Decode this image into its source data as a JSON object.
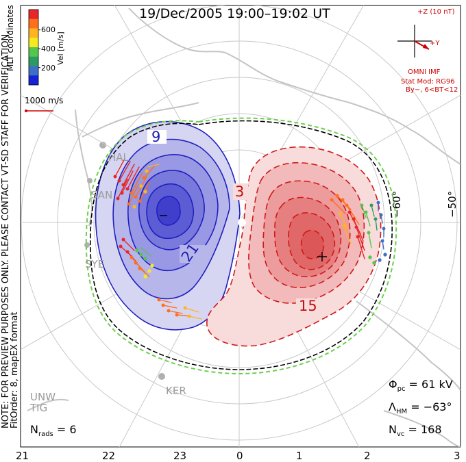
{
  "title": "19/Dec/2005 19:00–19:02 UT",
  "legend": {
    "colorbar_label": "Vel [m/s]",
    "ticks": [
      "600",
      "400",
      "200"
    ],
    "colors": [
      "#e8262a",
      "#ff6f1a",
      "#ffb422",
      "#f6e91f",
      "#55c64d",
      "#2a9b62",
      "#3d6fc8",
      "#1423d6"
    ],
    "scale_label": "1000 m/s",
    "coord_label": "MLT coordinates"
  },
  "imf": {
    "z_label": "+Z (10 nT)",
    "y_label": "+Y",
    "source": "OMNI IMF",
    "model_line1": "Stat Mod: RG96",
    "model_line2": "By−, 6<BT<12"
  },
  "note_line1": "NOTE: FOR PREVIEW PURPOSES ONLY. PLEASE CONTACT VT-SD STAFF FOR VERIFICATION.",
  "note_line2": "FitOrder: 8, mapEX format",
  "contours": {
    "neg_label_outer": "9",
    "neg_label_inner": "21",
    "pos_label_outer": "3",
    "pos_label_inner": "15"
  },
  "stations": [
    "HAL",
    "SAN",
    "SYE",
    "KER",
    "UNW",
    "TIG"
  ],
  "lat_labels": [
    "−60°",
    "−50°"
  ],
  "mlt_labels": [
    "21",
    "22",
    "23",
    "0",
    "1",
    "2",
    "3"
  ],
  "stats": {
    "phi_symbol": "Φ",
    "phi_sub": "pc",
    "phi_value": "= 61 kV",
    "lambda_symbol": "Λ",
    "lambda_sub": "HM",
    "lambda_value": "= −63°",
    "nvc_symbol": "N",
    "nvc_sub": "vc",
    "nvc_value": "= 168",
    "nrads_symbol": "N",
    "nrads_sub": "rads",
    "nrads_value": "= 6"
  },
  "colors": {
    "negative_cell": "#2a2ad0",
    "positive_cell": "#d42020",
    "hmb": "#6ad04a",
    "grid": "#c0c0c0"
  }
}
